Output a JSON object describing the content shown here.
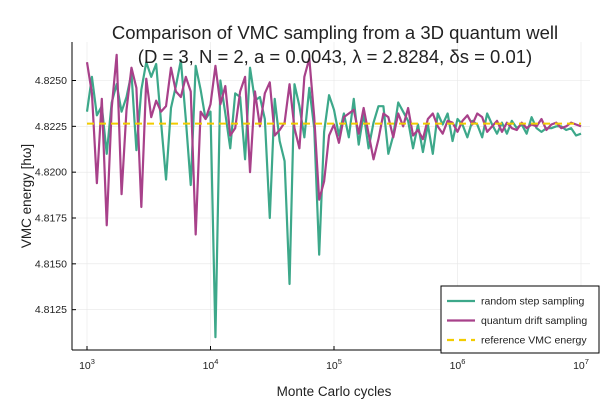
{
  "chart_data": {
    "type": "line",
    "title": "Comparison of VMC sampling from a 3D quantum well",
    "subtitle": "(D = 3, N = 2, a = 0.0043, λ = 2.8284, δs = 0.01)",
    "xlabel": "Monte Carlo cycles",
    "ylabel": "VMC energy [hω]",
    "xscale": "log",
    "xlim": [
      1000,
      10000000
    ],
    "ylim": [
      4.8103,
      4.8271
    ],
    "x_ticks": [
      1000,
      10000,
      100000,
      1000000,
      10000000
    ],
    "x_tick_labels": [
      {
        "base": "10",
        "exp": "3"
      },
      {
        "base": "10",
        "exp": "4"
      },
      {
        "base": "10",
        "exp": "5"
      },
      {
        "base": "10",
        "exp": "6"
      },
      {
        "base": "10",
        "exp": "7"
      }
    ],
    "y_ticks": [
      4.8125,
      4.815,
      4.8175,
      4.82,
      4.8225,
      4.825
    ],
    "y_tick_labels": [
      "4.8125",
      "4.8150",
      "4.8175",
      "4.8200",
      "4.8225",
      "4.8250"
    ],
    "grid": true,
    "legend_position": "bottom-right",
    "series": [
      {
        "name": "random step sampling",
        "color": "#3da88a",
        "x": [
          1000,
          1096,
          1202,
          1318,
          1445,
          1585,
          1738,
          1905,
          2089,
          2291,
          2512,
          2754,
          3020,
          3311,
          3631,
          3981,
          4365,
          4786,
          5248,
          5754,
          6310,
          6918,
          7586,
          8318,
          9120,
          10000,
          10965,
          12023,
          13183,
          14454,
          15849,
          17378,
          19055,
          20893,
          22909,
          25119,
          27542,
          30200,
          33113,
          36308,
          39811,
          43652,
          47863,
          52481,
          57544,
          63096,
          69183,
          75858,
          83176,
          91201,
          100000,
          109648,
          120226,
          131826,
          144544,
          158489,
          173780,
          190546,
          208930,
          229087,
          251189,
          275423,
          301995,
          331131,
          363078,
          398107,
          436516,
          478630,
          524807,
          575440,
          630957,
          691831,
          758578,
          831764,
          912011,
          1000000,
          1096478,
          1202264,
          1318257,
          1445440,
          1584893,
          1737801,
          1905461,
          2089296,
          2290868,
          2511886,
          2754229,
          3019952,
          3311311,
          3630781,
          3981072,
          4365158,
          4786301,
          5248075,
          5754399,
          6309573,
          6918310,
          7585776,
          8317638,
          9120108,
          10000000
        ],
        "values": [
          4.8233,
          4.8252,
          4.8231,
          4.8236,
          4.821,
          4.8238,
          4.8248,
          4.8233,
          4.8241,
          4.8254,
          4.8212,
          4.8245,
          4.826,
          4.8252,
          4.8259,
          4.8227,
          4.8196,
          4.8235,
          4.8247,
          4.8261,
          4.8229,
          4.8193,
          4.8258,
          4.8245,
          4.8229,
          4.8233,
          4.811,
          4.825,
          4.8232,
          4.8213,
          4.8243,
          4.8241,
          4.8207,
          4.8257,
          4.8239,
          4.8241,
          4.8229,
          4.8175,
          4.824,
          4.8217,
          4.8206,
          4.8139,
          4.8248,
          4.8236,
          4.8219,
          4.8246,
          4.8224,
          4.8155,
          4.8222,
          4.8242,
          4.8234,
          4.822,
          4.8232,
          4.8219,
          4.824,
          4.8215,
          4.8232,
          4.8213,
          4.8227,
          4.8236,
          4.8236,
          4.821,
          4.822,
          4.8238,
          4.8233,
          4.8228,
          4.8213,
          4.8226,
          4.8211,
          4.8226,
          4.821,
          4.8232,
          4.8226,
          4.8232,
          4.8217,
          4.8229,
          4.8226,
          4.8219,
          4.8228,
          4.8226,
          4.8219,
          4.8232,
          4.8226,
          4.8221,
          4.8227,
          4.8221,
          4.8228,
          4.8224,
          4.8226,
          4.8221,
          4.823,
          4.8224,
          4.8222,
          4.8224,
          4.8224,
          4.8225,
          4.8225,
          4.8223,
          4.8224,
          4.822,
          4.8221
        ]
      },
      {
        "name": "quantum drift sampling",
        "color": "#a8418a",
        "x": [
          1000,
          1096,
          1202,
          1318,
          1445,
          1585,
          1738,
          1905,
          2089,
          2291,
          2512,
          2754,
          3020,
          3311,
          3631,
          3981,
          4365,
          4786,
          5248,
          5754,
          6310,
          6918,
          7586,
          8318,
          9120,
          10000,
          10965,
          12023,
          13183,
          14454,
          15849,
          17378,
          19055,
          20893,
          22909,
          25119,
          27542,
          30200,
          33113,
          36308,
          39811,
          43652,
          47863,
          52481,
          57544,
          63096,
          69183,
          75858,
          83176,
          91201,
          100000,
          109648,
          120226,
          131826,
          144544,
          158489,
          173780,
          190546,
          208930,
          229087,
          251189,
          275423,
          301995,
          331131,
          363078,
          398107,
          436516,
          478630,
          524807,
          575440,
          630957,
          691831,
          758578,
          831764,
          912011,
          1000000,
          1096478,
          1202264,
          1318257,
          1445440,
          1584893,
          1737801,
          1905461,
          2089296,
          2290868,
          2511886,
          2754229,
          3019952,
          3311311,
          3630781,
          3981072,
          4365158,
          4786301,
          5248075,
          5754399,
          6309573,
          6918310,
          7585776,
          8317638,
          9120108,
          10000000
        ],
        "values": [
          4.826,
          4.8243,
          4.8194,
          4.824,
          4.8171,
          4.8235,
          4.8264,
          4.8188,
          4.8234,
          4.8257,
          4.8246,
          4.8181,
          4.8251,
          4.823,
          4.8239,
          4.8233,
          4.8236,
          4.8257,
          4.8244,
          4.8241,
          4.8252,
          4.8244,
          4.8166,
          4.8233,
          4.8229,
          4.8237,
          4.8258,
          4.8237,
          4.8247,
          4.822,
          4.8224,
          4.8244,
          4.8252,
          4.82,
          4.8244,
          4.8225,
          4.8243,
          4.8249,
          4.822,
          4.8223,
          4.8227,
          4.8248,
          4.8224,
          4.8213,
          4.8252,
          4.8262,
          4.823,
          4.8185,
          4.8195,
          4.822,
          4.8226,
          4.8216,
          4.823,
          4.8232,
          4.8234,
          4.8221,
          4.8235,
          4.8221,
          4.8207,
          4.8218,
          4.8232,
          4.823,
          4.8219,
          4.8232,
          4.8225,
          4.8235,
          4.822,
          4.8223,
          4.8218,
          4.8229,
          4.8232,
          4.8225,
          4.8221,
          4.8228,
          4.8227,
          4.8222,
          4.8228,
          4.8231,
          4.8226,
          4.8232,
          4.823,
          4.8222,
          4.8225,
          4.8228,
          4.8222,
          4.8227,
          4.8224,
          4.8223,
          4.8227,
          4.8224,
          4.8226,
          4.8225,
          4.8229,
          4.8223,
          4.8226,
          4.8227,
          4.8224,
          4.8225,
          4.8227,
          4.8226,
          4.8225
        ]
      },
      {
        "name": "reference VMC energy",
        "color": "#f2cc00",
        "dashed": true,
        "x": [
          1000,
          10000000
        ],
        "values": [
          4.82265,
          4.82265
        ]
      }
    ]
  }
}
